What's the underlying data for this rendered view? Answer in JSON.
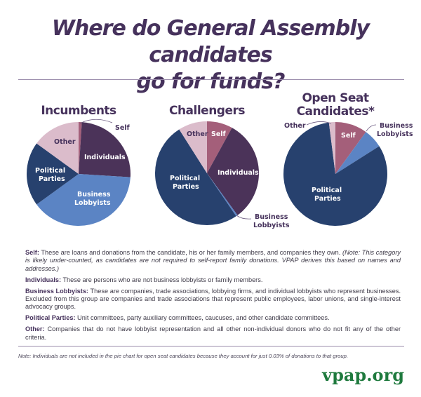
{
  "title_line1": "Where do General Assembly candidates",
  "title_line2": "go for funds?",
  "colors": {
    "title": "#46325c",
    "self": "#a45f7a",
    "individuals": "#4b3359",
    "business_lobbyists": "#5b84c4",
    "political_parties": "#27416e",
    "other": "#dbbccb",
    "logo": "#1f7a3e"
  },
  "pies": [
    {
      "title": "Incumbents",
      "labels": {
        "self": "Self",
        "individuals": "Individuals",
        "business1": "Business",
        "business2": "Lobbyists",
        "parties1": "Political",
        "parties2": "Parties",
        "other": "Other"
      }
    },
    {
      "title": "Challengers",
      "labels": {
        "self": "Self",
        "individuals": "Individuals",
        "business1": "Business",
        "business2": "Lobbyists",
        "parties1": "Political",
        "parties2": "Parties",
        "other": "Other"
      }
    },
    {
      "title1": "Open Seat",
      "title2": "Candidates*",
      "labels": {
        "self": "Self",
        "business1": "Business",
        "business2": "Lobbyists",
        "parties1": "Political",
        "parties2": "Parties",
        "other": "Other"
      }
    }
  ],
  "definitions": [
    {
      "term": "Self:",
      "text": " These are loans and donations from the candidate, his or her family members, and companies they own. ",
      "note": "(Note: This category is likely under-counted, as candidates are not required to self-report family donations. VPAP derives this based on names and addresses.)"
    },
    {
      "term": "Individuals:",
      "text": " These are persons who are not business lobbyists or family members."
    },
    {
      "term": "Business Lobbyists:",
      "text": " These are companies, trade associations, lobbying firms, and individual lobbyists who represent businesses. Excluded from this group are companies and trade associations that represent public employees, labor unions, and single-interest advocacy groups."
    },
    {
      "term": "Political Parties:",
      "text": " Unit committees, party auxiliary committees, caucuses, and other candidate committees."
    },
    {
      "term": "Other:",
      "text": " Companies that do not have lobbyist representation and all other non-individual donors who do not fit any of the other criteria."
    }
  ],
  "footnote": "Note: Individuals are not included in the pie chart for open seat candidates because they account for just 0.03% of donations to that group.",
  "logo": "vpap.org",
  "chart_data": [
    {
      "type": "pie",
      "title": "Incumbents",
      "categories": [
        "Self",
        "Individuals",
        "Business Lobbyists",
        "Political Parties",
        "Other"
      ],
      "values": [
        1,
        25,
        39,
        20,
        15
      ],
      "unit": "percent (estimated)"
    },
    {
      "type": "pie",
      "title": "Challengers",
      "categories": [
        "Self",
        "Individuals",
        "Business Lobbyists",
        "Political Parties",
        "Other"
      ],
      "values": [
        8,
        32,
        0.5,
        50.5,
        9
      ],
      "unit": "percent (estimated)"
    },
    {
      "type": "pie",
      "title": "Open Seat Candidates*",
      "categories": [
        "Self",
        "Business Lobbyists",
        "Political Parties",
        "Other"
      ],
      "values": [
        10,
        6,
        82,
        2
      ],
      "unit": "percent (estimated)"
    }
  ]
}
